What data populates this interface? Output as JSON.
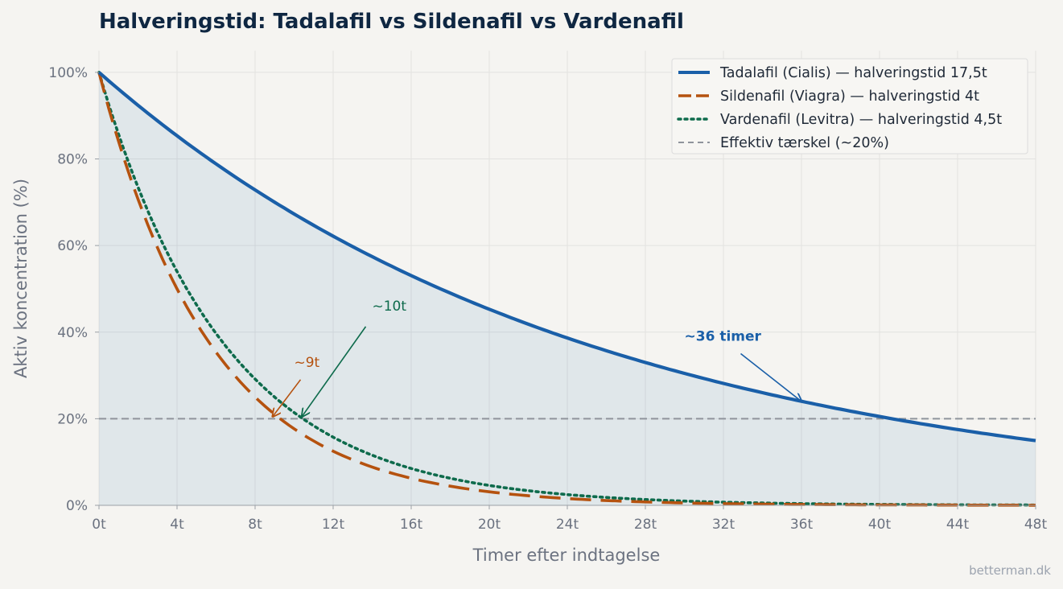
{
  "chart_data": {
    "type": "line",
    "title": "Halveringstid: Tadalafil vs Sildenafil vs Vardenafil",
    "xlabel": "Timer efter indtagelse",
    "ylabel": "Aktiv koncentration (%)",
    "xlim": [
      0,
      48
    ],
    "ylim": [
      0,
      105
    ],
    "x_ticks": [
      0,
      4,
      8,
      12,
      16,
      20,
      24,
      28,
      32,
      36,
      40,
      44,
      48
    ],
    "x_tick_labels": [
      "0t",
      "4t",
      "8t",
      "12t",
      "16t",
      "20t",
      "24t",
      "28t",
      "32t",
      "36t",
      "40t",
      "44t",
      "48t"
    ],
    "y_ticks": [
      0,
      20,
      40,
      60,
      80,
      100
    ],
    "y_tick_labels": [
      "0%",
      "20%",
      "40%",
      "60%",
      "80%",
      "100%"
    ],
    "grid": true,
    "legend_position": "top-right",
    "series": [
      {
        "name": "Tadalafil (Cialis) — halveringstid 17,5t",
        "half_life_hours": 17.5,
        "color": "#1a5fa8",
        "style": "solid",
        "fill_under": true,
        "x": [
          0,
          4,
          8,
          12,
          16,
          20,
          24,
          28,
          32,
          36,
          40,
          44,
          48
        ],
        "values": [
          100,
          85.3,
          72.8,
          62.1,
          53.0,
          45.3,
          38.6,
          33.0,
          28.1,
          24.0,
          20.5,
          17.5,
          14.9
        ]
      },
      {
        "name": "Sildenafil (Viagra) — halveringstid 4t",
        "half_life_hours": 4,
        "color": "#b5520f",
        "style": "dashed",
        "x": [
          0,
          4,
          8,
          12,
          16,
          20,
          24,
          28,
          32,
          36,
          40,
          44,
          48
        ],
        "values": [
          100,
          50,
          25,
          12.5,
          6.25,
          3.13,
          1.56,
          0.78,
          0.39,
          0.2,
          0.1,
          0.05,
          0.02
        ]
      },
      {
        "name": "Vardenafil (Levitra) — halveringstid 4,5t",
        "half_life_hours": 4.5,
        "color": "#0e6b4c",
        "style": "dotted",
        "x": [
          0,
          4,
          8,
          12,
          16,
          20,
          24,
          28,
          32,
          36,
          40,
          44,
          48
        ],
        "values": [
          100,
          54.0,
          29.1,
          15.7,
          8.5,
          4.6,
          2.5,
          1.3,
          0.7,
          0.4,
          0.2,
          0.1,
          0.06
        ]
      }
    ],
    "threshold": {
      "name": "Effektiv tærskel (~20%)",
      "value": 20,
      "color": "#8f949c",
      "style": "dashed"
    },
    "annotations": [
      {
        "text": "~9t",
        "target_x": 8.9,
        "target_y": 20.5,
        "text_x": 10,
        "text_y": 32,
        "color": "#b5520f",
        "bold": false
      },
      {
        "text": "~10t",
        "target_x": 10.4,
        "target_y": 20.5,
        "text_x": 14,
        "text_y": 45,
        "color": "#0e6b4c",
        "bold": false
      },
      {
        "text": "~36 timer",
        "target_x": 36,
        "target_y": 24,
        "text_x": 30,
        "text_y": 38,
        "color": "#1a5fa8",
        "bold": true
      }
    ]
  },
  "watermark": "betterman.dk"
}
